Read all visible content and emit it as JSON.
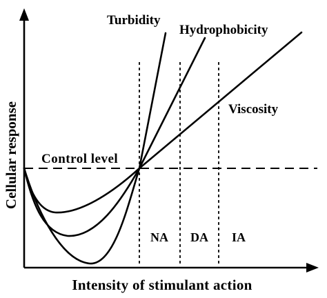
{
  "axes": {
    "x_label": "Intensity of stimulant action",
    "y_label": "Cellular response"
  },
  "reference_line": {
    "label": "Control level"
  },
  "curves": [
    {
      "id": "turbidity",
      "label": "Turbidity"
    },
    {
      "id": "hydrophobicity",
      "label": "Hydrophobicity"
    },
    {
      "id": "viscosity",
      "label": "Viscosity"
    }
  ],
  "regions": [
    {
      "id": "na",
      "label": "NA"
    },
    {
      "id": "da",
      "label": "DA"
    },
    {
      "id": "ia",
      "label": "IA"
    }
  ]
}
